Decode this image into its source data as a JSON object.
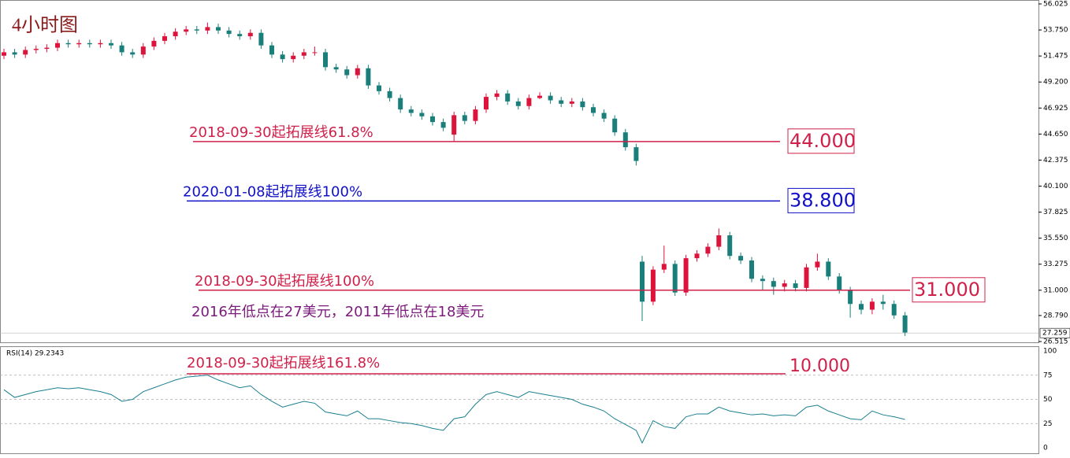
{
  "chart_data": {
    "type": "candlestick",
    "title": "4小时图",
    "up_color": "#dc143c",
    "down_color": "#1a7f7a",
    "open": [
      51.5,
      51.8,
      51.6,
      52.0,
      52.1,
      52.2,
      52.6,
      52.5,
      52.6,
      52.5,
      52.6,
      52.4,
      51.8,
      51.6,
      52.3,
      52.8,
      53.2,
      53.6,
      53.8,
      53.7,
      54.0,
      53.7,
      53.4,
      53.2,
      53.5,
      52.4,
      51.6,
      51.2,
      51.5,
      51.8,
      51.8,
      50.5,
      50.3,
      49.8,
      50.4,
      48.9,
      48.4,
      47.8,
      46.8,
      46.5,
      46.2,
      45.7,
      44.6,
      46.3,
      45.8,
      46.8,
      47.9,
      48.2,
      47.5,
      47.1,
      47.8,
      48.0,
      47.6,
      47.3,
      47.5,
      47.0,
      46.5,
      46.0,
      44.8,
      43.5,
      33.5,
      30.0,
      32.8,
      33.3,
      30.8,
      33.8,
      34.2,
      34.8,
      35.8,
      34.0,
      33.6,
      32.0,
      31.8,
      31.3,
      31.6,
      31.2,
      33.0,
      33.5,
      32.2,
      31.0,
      29.8,
      29.3,
      30.0,
      29.8,
      28.8
    ],
    "high": [
      52.1,
      52.1,
      52.3,
      52.4,
      52.5,
      52.9,
      52.9,
      52.9,
      52.9,
      52.9,
      52.9,
      52.7,
      52.1,
      52.6,
      53.1,
      53.5,
      53.9,
      54.1,
      54.1,
      54.4,
      54.3,
      54.0,
      53.7,
      53.8,
      53.8,
      52.7,
      51.9,
      51.8,
      52.1,
      52.3,
      52.1,
      50.8,
      50.6,
      50.7,
      50.7,
      49.2,
      48.7,
      48.1,
      47.1,
      46.8,
      46.5,
      46.0,
      46.6,
      46.6,
      47.1,
      48.2,
      48.5,
      48.5,
      47.8,
      48.1,
      48.3,
      48.3,
      47.9,
      47.8,
      47.8,
      47.3,
      46.8,
      46.3,
      45.1,
      43.8,
      34.0,
      33.1,
      34.9,
      33.6,
      34.1,
      34.5,
      35.1,
      36.4,
      36.1,
      34.3,
      33.9,
      32.3,
      32.1,
      31.9,
      31.9,
      33.3,
      34.2,
      33.8,
      32.5,
      31.3,
      30.1,
      30.3,
      30.6,
      30.1,
      29.1
    ],
    "low": [
      51.2,
      51.3,
      51.3,
      51.7,
      51.8,
      51.9,
      52.2,
      52.2,
      52.2,
      52.2,
      52.1,
      51.5,
      51.3,
      51.3,
      52.0,
      52.5,
      52.9,
      53.3,
      53.4,
      53.4,
      53.4,
      53.1,
      52.9,
      52.9,
      52.1,
      51.3,
      50.9,
      50.9,
      51.2,
      51.5,
      50.2,
      50.0,
      49.5,
      49.5,
      48.6,
      48.1,
      47.5,
      46.5,
      46.2,
      45.9,
      45.4,
      44.9,
      44.0,
      45.5,
      45.5,
      46.5,
      47.6,
      47.2,
      46.8,
      46.8,
      47.7,
      47.3,
      47.0,
      47.0,
      46.7,
      46.2,
      45.7,
      44.5,
      43.2,
      41.9,
      28.3,
      29.7,
      32.5,
      30.5,
      30.5,
      33.5,
      33.9,
      34.5,
      33.7,
      33.3,
      31.7,
      31.0,
      30.6,
      30.9,
      30.9,
      30.9,
      32.7,
      31.9,
      30.7,
      28.6,
      28.9,
      28.9,
      29.3,
      28.5,
      27.0
    ],
    "close": [
      51.8,
      51.6,
      52.0,
      52.1,
      52.2,
      52.6,
      52.5,
      52.6,
      52.5,
      52.6,
      52.4,
      51.8,
      51.6,
      52.3,
      52.8,
      53.2,
      53.6,
      53.8,
      53.7,
      54.0,
      53.7,
      53.4,
      53.2,
      53.5,
      52.4,
      51.6,
      51.2,
      51.5,
      51.8,
      51.8,
      50.5,
      50.3,
      49.8,
      50.4,
      48.9,
      48.4,
      47.8,
      46.8,
      46.5,
      46.2,
      45.7,
      45.2,
      46.3,
      45.8,
      46.8,
      47.9,
      48.2,
      47.5,
      47.1,
      47.8,
      48.0,
      47.6,
      47.3,
      47.5,
      47.0,
      46.5,
      46.0,
      44.8,
      43.5,
      42.3,
      30.0,
      32.8,
      33.3,
      30.8,
      33.8,
      34.2,
      34.8,
      35.8,
      34.0,
      33.6,
      32.0,
      31.8,
      31.3,
      31.6,
      31.2,
      33.0,
      33.5,
      32.2,
      31.0,
      29.8,
      29.3,
      30.0,
      29.8,
      28.8,
      27.3
    ],
    "ylim": [
      26.515,
      56.025
    ],
    "yticks": [
      56.025,
      {
        "value": 53.75,
        "label": "53.750"
      },
      51.475,
      {
        "value": 49.2,
        "label": "49.200"
      },
      46.925,
      {
        "value": 44.65,
        "label": "44.650"
      },
      42.375,
      {
        "value": 40.1,
        "label": "40.100"
      },
      37.825,
      {
        "value": 35.55,
        "label": "35.550"
      },
      33.275,
      {
        "value": 31,
        "label": "31.000"
      },
      {
        "value": 28.79,
        "label": "28.790"
      },
      26.515
    ],
    "last_price": 27.259,
    "levels": [
      {
        "text": "2018-09-30起拓展线61.8%",
        "value": 44,
        "label": "44.000",
        "color": "#d0204a"
      },
      {
        "text": "2020-01-08起拓展线100%",
        "value": 38.8,
        "label": "38.800",
        "color": "#1010c8"
      },
      {
        "text": "2018-09-30起拓展线100%",
        "value": 31,
        "label": "31.000",
        "color": "#d0204a"
      }
    ],
    "note": "2016年低点在27美元，2011年低点在18美元",
    "rsi": {
      "label": "RSI(14) 29.2343",
      "color": "#1a7f8f",
      "values": [
        60,
        52,
        55,
        58,
        60,
        62,
        61,
        62,
        60,
        58,
        55,
        48,
        50,
        58,
        62,
        66,
        70,
        73,
        74,
        75,
        70,
        66,
        62,
        64,
        55,
        48,
        42,
        45,
        48,
        46,
        37,
        35,
        33,
        38,
        30,
        30,
        28,
        26,
        25,
        23,
        20,
        18,
        30,
        32,
        45,
        55,
        58,
        55,
        52,
        58,
        56,
        54,
        52,
        50,
        45,
        42,
        38,
        30,
        24,
        18,
        5,
        28,
        22,
        20,
        32,
        35,
        35,
        42,
        38,
        36,
        34,
        35,
        33,
        34,
        33,
        42,
        44,
        38,
        34,
        30,
        29,
        38,
        34,
        32,
        29.2343
      ],
      "ylim": [
        0,
        100
      ],
      "yticks": [
        100,
        75,
        50,
        25,
        0
      ],
      "level": {
        "text": "2018-09-30起拓展线161.8%",
        "label": "10.000",
        "color": "#d0204a"
      }
    }
  }
}
